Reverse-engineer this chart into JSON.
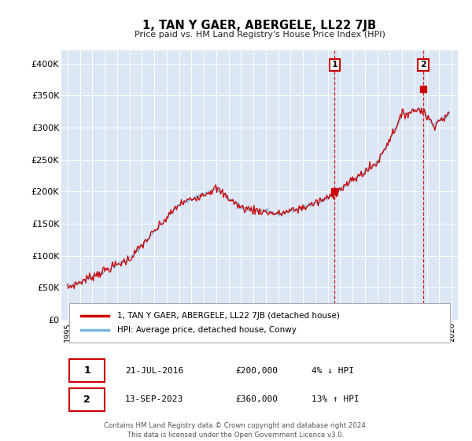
{
  "title": "1, TAN Y GAER, ABERGELE, LL22 7JB",
  "subtitle": "Price paid vs. HM Land Registry's House Price Index (HPI)",
  "legend_entries": [
    "1, TAN Y GAER, ABERGELE, LL22 7JB (detached house)",
    "HPI: Average price, detached house, Conwy"
  ],
  "annotation1": {
    "label": "1",
    "date": "21-JUL-2016",
    "price": "£200,000",
    "pct": "4% ↓ HPI",
    "x_year": 2016.55,
    "y_val": 200000
  },
  "annotation2": {
    "label": "2",
    "date": "13-SEP-2023",
    "price": "£360,000",
    "pct": "13% ↑ HPI",
    "x_year": 2023.7,
    "y_val": 360000
  },
  "ytick_labels": [
    "£0",
    "£50K",
    "£100K",
    "£150K",
    "£200K",
    "£250K",
    "£300K",
    "£350K",
    "£400K"
  ],
  "ytick_values": [
    0,
    50000,
    100000,
    150000,
    200000,
    250000,
    300000,
    350000,
    400000
  ],
  "ylim": [
    0,
    420000
  ],
  "xlim_start": 1994.5,
  "xlim_end": 2026.5,
  "footer": "Contains HM Land Registry data © Crown copyright and database right 2024.\nThis data is licensed under the Open Government Licence v3.0.",
  "hpi_color": "#7ab4d8",
  "price_color": "#cc0000",
  "plot_bg_color": "#dce6f5"
}
